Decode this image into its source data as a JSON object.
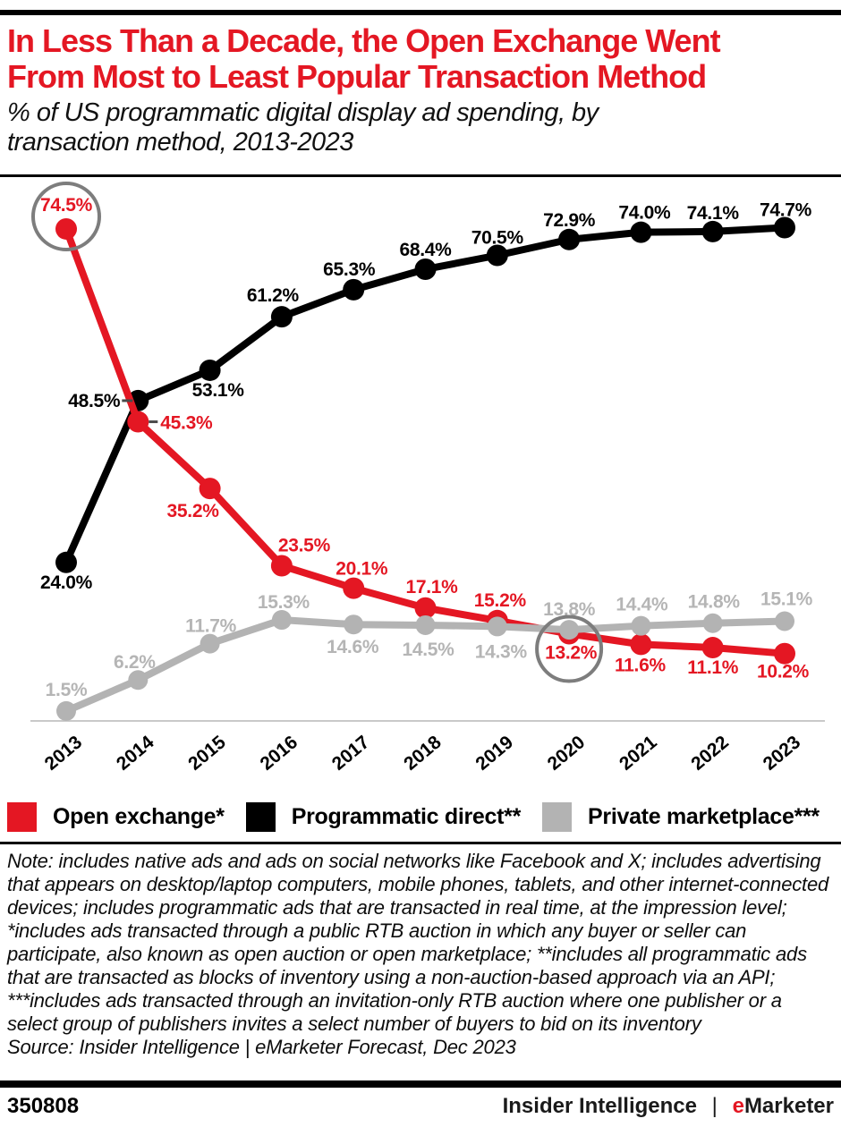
{
  "header": {
    "title_lines": [
      "In Less Than a Decade, the Open Exchange Went",
      "From Most to Least Popular Transaction Method"
    ],
    "subtitle_lines": [
      "% of US programmatic digital display ad spending, by",
      "transaction method, 2013-2023"
    ]
  },
  "chart_data": {
    "type": "line",
    "title": "In Less Than a Decade, the Open Exchange Went From Most to Least Popular Transaction Method",
    "subtitle": "% of US programmatic digital display ad spending, by transaction method, 2013-2023",
    "unit": "%",
    "x": [
      "2013",
      "2014",
      "2015",
      "2016",
      "2017",
      "2018",
      "2019",
      "2020",
      "2021",
      "2022",
      "2023"
    ],
    "ylim": [
      0,
      80
    ],
    "grid": false,
    "legend_position": "bottom",
    "series": [
      {
        "name": "Open exchange*",
        "color": "#e41723",
        "label_color": "#e41723",
        "values": [
          74.5,
          45.3,
          35.2,
          23.5,
          20.1,
          17.1,
          15.2,
          13.2,
          11.6,
          11.1,
          10.2
        ]
      },
      {
        "name": "Programmatic direct**",
        "color": "#000000",
        "label_color": "#000000",
        "values": [
          24.0,
          48.5,
          53.1,
          61.2,
          65.3,
          68.4,
          70.5,
          72.9,
          74.0,
          74.1,
          74.7
        ]
      },
      {
        "name": "Private marketplace***",
        "color": "#b3b3b3",
        "label_color": "#b5b5b5",
        "values": [
          1.5,
          6.2,
          11.7,
          15.3,
          14.6,
          14.5,
          14.3,
          13.8,
          14.4,
          14.8,
          15.1
        ]
      }
    ],
    "annotations": [
      {
        "type": "circle",
        "series": "Open exchange*",
        "x": "2013",
        "value": 74.5
      },
      {
        "type": "circle",
        "series": "Open exchange*",
        "x": "2020",
        "value": 13.2
      }
    ],
    "annotation_color": "#7d7d7d",
    "axis_color": "#c9c9c9"
  },
  "legend": {
    "items": [
      {
        "label": "Open exchange*",
        "color": "#e41723"
      },
      {
        "label": "Programmatic direct**",
        "color": "#000000"
      },
      {
        "label": "Private marketplace***",
        "color": "#b3b3b3"
      }
    ]
  },
  "note": "Note: includes native ads and ads on social networks like Facebook and X; includes advertising that appears on desktop/laptop computers, mobile phones, tablets, and other internet-connected devices; includes programmatic ads that are transacted in real time, at the impression level; *includes ads transacted through a public RTB auction in which any buyer or seller can participate, also known as open auction or open marketplace; **includes all programmatic ads that are transacted as blocks of inventory using a non-auction-based approach via an API; ***includes ads transacted through an invitation-only RTB auction where one publisher or a select group of publishers invites a select number of buyers to bid on its inventory",
  "source": "Source: Insider Intelligence | eMarketer Forecast, Dec 2023",
  "footer": {
    "chart_id": "350808",
    "brand": {
      "insider": "Insider Intelligence",
      "separator": "|",
      "emarketer_e": "e",
      "emarketer_rest": "Marketer"
    }
  }
}
